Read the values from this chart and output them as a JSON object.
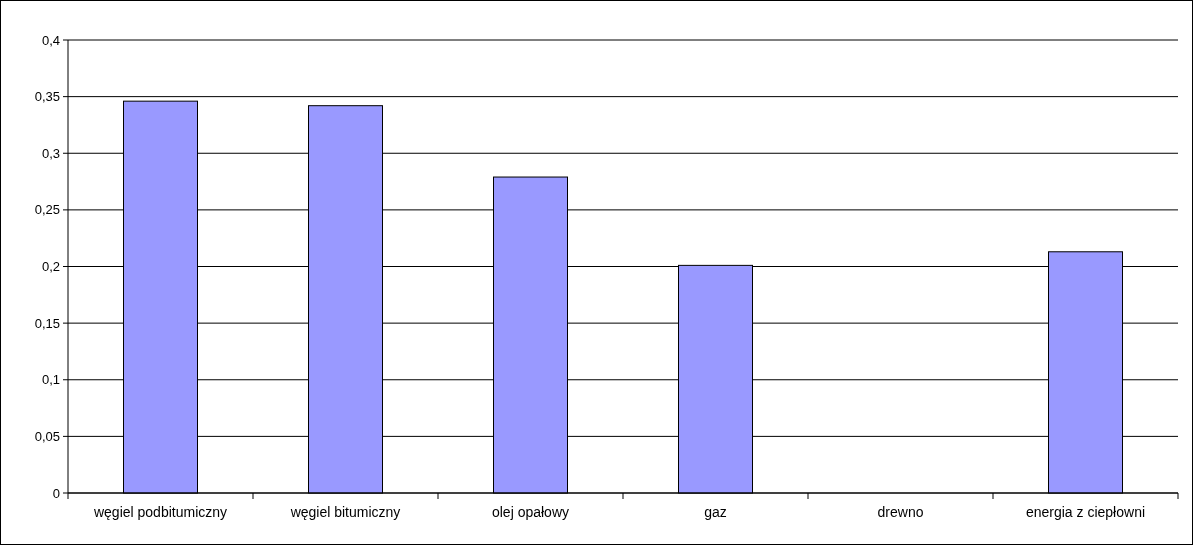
{
  "chart_data": {
    "type": "bar",
    "categories": [
      "węgiel podbitumiczny",
      "węgiel bitumiczny",
      "olej opałowy",
      "gaz",
      "drewno",
      "energia z ciepłowni"
    ],
    "values": [
      0.346,
      0.342,
      0.279,
      0.201,
      0,
      0.213
    ],
    "color": "#9999ff",
    "ylim": [
      0,
      0.4
    ],
    "yticks": [
      {
        "value": 0,
        "label": "0"
      },
      {
        "value": 0.05,
        "label": "0,05"
      },
      {
        "value": 0.1,
        "label": "0,1"
      },
      {
        "value": 0.15,
        "label": "0,15"
      },
      {
        "value": 0.2,
        "label": "0,2"
      },
      {
        "value": 0.25,
        "label": "0,25"
      },
      {
        "value": 0.3,
        "label": "0,3"
      },
      {
        "value": 0.35,
        "label": "0,35"
      },
      {
        "value": 0.4,
        "label": "0,4"
      }
    ],
    "grid": "y"
  }
}
